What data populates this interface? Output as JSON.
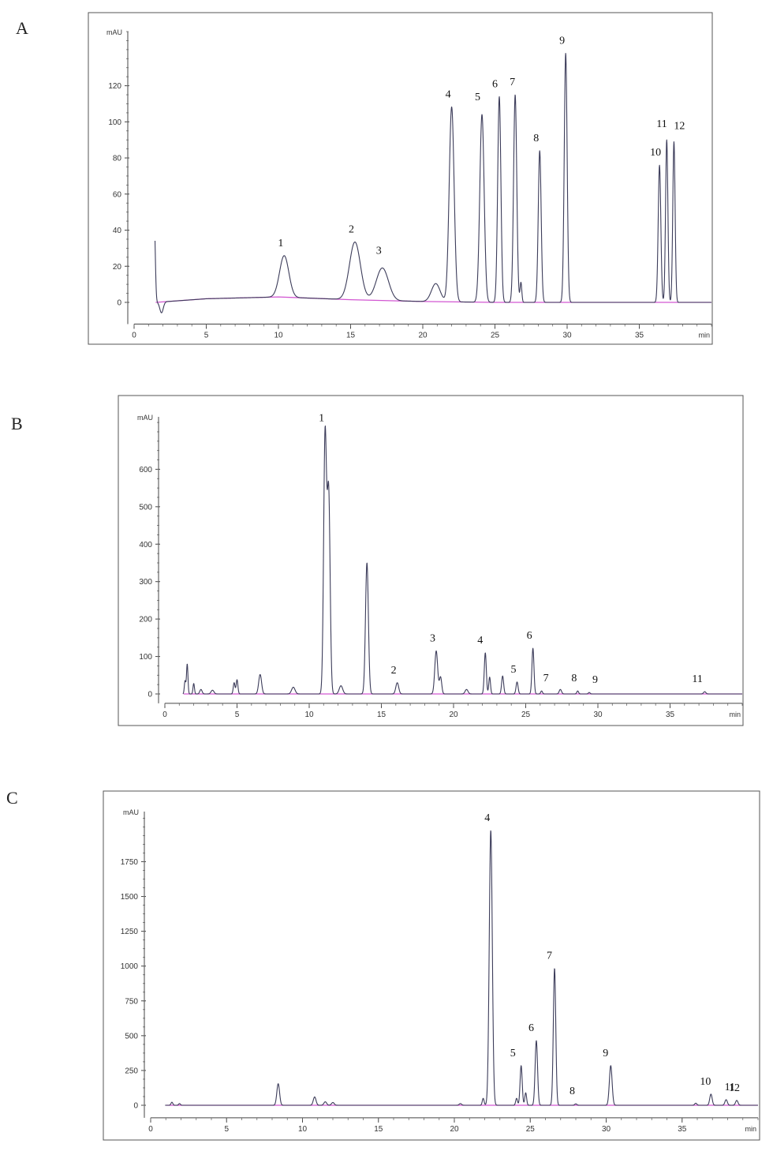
{
  "colors": {
    "trace": "#3c3c5a",
    "baseline": "#d257d2",
    "frame": "#555555"
  },
  "chart_data": [
    {
      "panel": "A",
      "type": "line",
      "ylabel": "mAU",
      "xlabel": "min",
      "xlim": [
        0,
        40
      ],
      "ylim": [
        -12,
        150
      ],
      "xticks": [
        0,
        5,
        10,
        15,
        20,
        25,
        30,
        35
      ],
      "yticks": [
        0,
        20,
        40,
        60,
        80,
        100,
        120
      ],
      "baseline": [
        [
          1.5,
          0
        ],
        [
          5,
          2
        ],
        [
          10,
          3
        ],
        [
          15,
          1.5
        ],
        [
          20,
          0.5
        ],
        [
          25,
          0
        ],
        [
          40,
          0
        ]
      ],
      "peaks": [
        {
          "label": "",
          "rt": 1.4,
          "height": 44,
          "width": 0.07
        },
        {
          "label": "",
          "rt": 1.9,
          "height": -6,
          "width": 0.12
        },
        {
          "label": "1",
          "rt": 10.4,
          "height": 23,
          "width": 0.32
        },
        {
          "label": "2",
          "rt": 15.3,
          "height": 32,
          "width": 0.38
        },
        {
          "label": "3",
          "rt": 17.2,
          "height": 18,
          "width": 0.42
        },
        {
          "label": "",
          "rt": 20.9,
          "height": 10,
          "width": 0.3
        },
        {
          "label": "4",
          "rt": 22.0,
          "height": 108,
          "width": 0.17
        },
        {
          "label": "5",
          "rt": 24.1,
          "height": 104,
          "width": 0.15
        },
        {
          "label": "6",
          "rt": 25.3,
          "height": 114,
          "width": 0.11
        },
        {
          "label": "7",
          "rt": 26.4,
          "height": 115,
          "width": 0.11
        },
        {
          "label": "",
          "rt": 26.8,
          "height": 11,
          "width": 0.06
        },
        {
          "label": "8",
          "rt": 28.1,
          "height": 84,
          "width": 0.1
        },
        {
          "label": "9",
          "rt": 29.9,
          "height": 138,
          "width": 0.1
        },
        {
          "label": "10",
          "rt": 36.4,
          "height": 76,
          "width": 0.09
        },
        {
          "label": "11",
          "rt": 36.9,
          "height": 90,
          "width": 0.08
        },
        {
          "label": "12",
          "rt": 37.4,
          "height": 89,
          "width": 0.08
        }
      ]
    },
    {
      "panel": "B",
      "type": "line",
      "ylabel": "mAU",
      "xlabel": "min",
      "xlim": [
        0,
        40
      ],
      "ylim": [
        -25,
        740
      ],
      "xticks": [
        0,
        5,
        10,
        15,
        20,
        25,
        30,
        35
      ],
      "yticks": [
        0,
        100,
        200,
        300,
        400,
        500,
        600
      ],
      "baseline": [
        [
          1.3,
          0
        ],
        [
          40,
          0
        ]
      ],
      "peaks": [
        {
          "label": "",
          "rt": 1.4,
          "height": 35,
          "width": 0.05
        },
        {
          "label": "",
          "rt": 1.55,
          "height": 80,
          "width": 0.05
        },
        {
          "label": "",
          "rt": 2.0,
          "height": 28,
          "width": 0.05
        },
        {
          "label": "",
          "rt": 2.5,
          "height": 12,
          "width": 0.08
        },
        {
          "label": "",
          "rt": 3.3,
          "height": 10,
          "width": 0.1
        },
        {
          "label": "",
          "rt": 4.8,
          "height": 30,
          "width": 0.06
        },
        {
          "label": "",
          "rt": 5.0,
          "height": 38,
          "width": 0.06
        },
        {
          "label": "",
          "rt": 6.6,
          "height": 52,
          "width": 0.1
        },
        {
          "label": "",
          "rt": 8.9,
          "height": 18,
          "width": 0.12
        },
        {
          "label": "1",
          "rt": 11.1,
          "height": 690,
          "width": 0.1
        },
        {
          "label": "",
          "rt": 11.35,
          "height": 530,
          "width": 0.1
        },
        {
          "label": "",
          "rt": 12.2,
          "height": 22,
          "width": 0.12
        },
        {
          "label": "",
          "rt": 14.0,
          "height": 350,
          "width": 0.1
        },
        {
          "label": "2",
          "rt": 16.1,
          "height": 30,
          "width": 0.1
        },
        {
          "label": "3",
          "rt": 18.8,
          "height": 115,
          "width": 0.1
        },
        {
          "label": "",
          "rt": 19.1,
          "height": 45,
          "width": 0.08
        },
        {
          "label": "",
          "rt": 20.9,
          "height": 12,
          "width": 0.1
        },
        {
          "label": "4",
          "rt": 22.2,
          "height": 110,
          "width": 0.07
        },
        {
          "label": "",
          "rt": 22.5,
          "height": 45,
          "width": 0.06
        },
        {
          "label": "",
          "rt": 23.4,
          "height": 48,
          "width": 0.07
        },
        {
          "label": "5",
          "rt": 24.4,
          "height": 32,
          "width": 0.07
        },
        {
          "label": "6",
          "rt": 25.5,
          "height": 122,
          "width": 0.07
        },
        {
          "label": "7",
          "rt": 26.1,
          "height": 8,
          "width": 0.06
        },
        {
          "label": "",
          "rt": 27.4,
          "height": 12,
          "width": 0.08
        },
        {
          "label": "8",
          "rt": 28.6,
          "height": 8,
          "width": 0.06
        },
        {
          "label": "9",
          "rt": 29.4,
          "height": 4,
          "width": 0.06
        },
        {
          "label": "11",
          "rt": 37.4,
          "height": 6,
          "width": 0.08
        }
      ]
    },
    {
      "panel": "C",
      "type": "line",
      "ylabel": "mAU",
      "xlabel": "min",
      "xlim": [
        0,
        40
      ],
      "ylim": [
        -90,
        2110
      ],
      "xticks": [
        0,
        5,
        10,
        15,
        20,
        25,
        30,
        35
      ],
      "yticks": [
        0,
        250,
        500,
        750,
        1000,
        1250,
        1500,
        1750
      ],
      "baseline": [
        [
          1.0,
          0
        ],
        [
          40,
          0
        ]
      ],
      "peaks": [
        {
          "label": "",
          "rt": 1.4,
          "height": 22,
          "width": 0.06
        },
        {
          "label": "",
          "rt": 1.9,
          "height": 12,
          "width": 0.06
        },
        {
          "label": "",
          "rt": 8.4,
          "height": 155,
          "width": 0.09
        },
        {
          "label": "",
          "rt": 10.8,
          "height": 60,
          "width": 0.09
        },
        {
          "label": "",
          "rt": 11.5,
          "height": 25,
          "width": 0.09
        },
        {
          "label": "",
          "rt": 12.0,
          "height": 20,
          "width": 0.09
        },
        {
          "label": "",
          "rt": 20.4,
          "height": 12,
          "width": 0.08
        },
        {
          "label": "",
          "rt": 21.9,
          "height": 50,
          "width": 0.06
        },
        {
          "label": "4",
          "rt": 22.4,
          "height": 1975,
          "width": 0.1
        },
        {
          "label": "",
          "rt": 24.1,
          "height": 50,
          "width": 0.06
        },
        {
          "label": "5",
          "rt": 24.4,
          "height": 285,
          "width": 0.07
        },
        {
          "label": "",
          "rt": 24.7,
          "height": 90,
          "width": 0.06
        },
        {
          "label": "6",
          "rt": 25.4,
          "height": 465,
          "width": 0.08
        },
        {
          "label": "7",
          "rt": 26.6,
          "height": 985,
          "width": 0.08
        },
        {
          "label": "8",
          "rt": 28.0,
          "height": 10,
          "width": 0.07
        },
        {
          "label": "9",
          "rt": 30.3,
          "height": 285,
          "width": 0.09
        },
        {
          "label": "",
          "rt": 35.9,
          "height": 15,
          "width": 0.07
        },
        {
          "label": "10",
          "rt": 36.9,
          "height": 80,
          "width": 0.08
        },
        {
          "label": "11",
          "rt": 37.9,
          "height": 40,
          "width": 0.08
        },
        {
          "label": "12",
          "rt": 38.6,
          "height": 35,
          "width": 0.08
        }
      ]
    }
  ]
}
